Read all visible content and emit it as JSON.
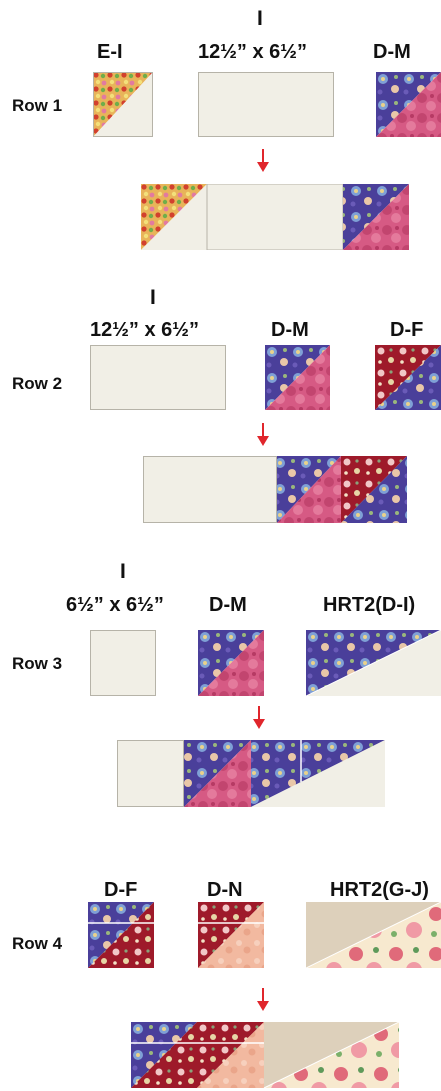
{
  "rows": [
    {
      "row_label": "Row 1",
      "letter": "I",
      "labels": [
        "E-I",
        "12½” x 6½”",
        "D-M"
      ]
    },
    {
      "row_label": "Row 2",
      "letter": "I",
      "labels": [
        "12½” x 6½”",
        "D-M",
        "D-F"
      ]
    },
    {
      "row_label": "Row 3",
      "letter": "I",
      "labels": [
        "6½” x 6½”",
        "D-M",
        "HRT2(D-I)"
      ]
    },
    {
      "row_label": "Row 4",
      "labels": [
        "D-F",
        "D-N",
        "HRT2(G-J)"
      ]
    }
  ],
  "colors": {
    "cream": "#f1efe6",
    "purple_floral": "#4a3f9a",
    "pink_floral": "#d65a84",
    "red_floral": "#9e1a2a",
    "peach_floral": "#f2b9a0",
    "tan": "#ddd0bb",
    "multicolor_floral": "#e8b45a",
    "arrow": "#e0262c"
  },
  "icons": [
    "down-arrow-icon"
  ]
}
